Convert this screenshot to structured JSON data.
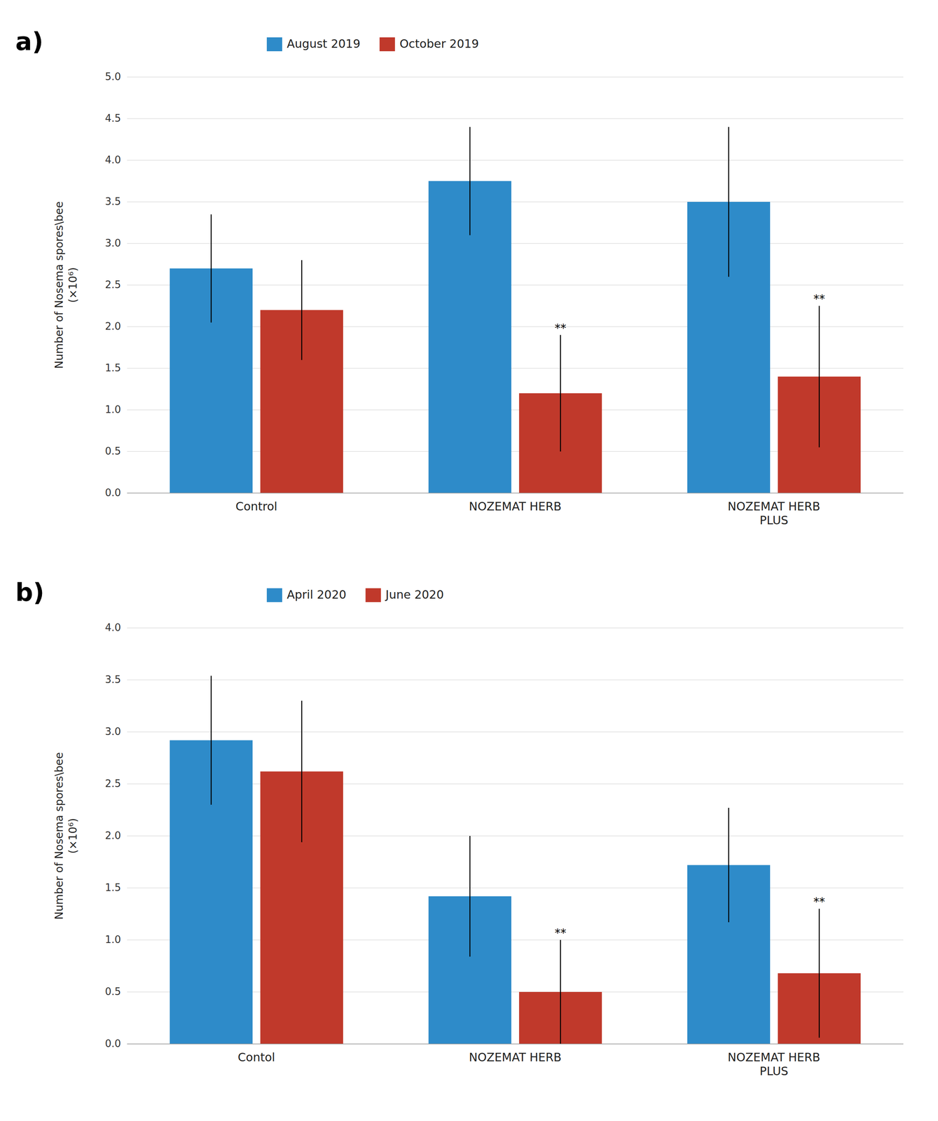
{
  "chart_data": [
    {
      "type": "bar",
      "title": "a)",
      "y_label": "Number of Nosema spores\\bee\n(×10⁶)",
      "categories": [
        "Control",
        "NOZEMAT HERB",
        "NOZEMAT HERB\nPLUS"
      ],
      "series": [
        {
          "name": "August 2019",
          "color": "#2e8bc9",
          "values": [
            2.7,
            3.75,
            3.5
          ],
          "errors": [
            0.65,
            0.65,
            0.9
          ]
        },
        {
          "name": "October 2019",
          "color": "#c0392b",
          "values": [
            2.2,
            1.2,
            1.4
          ],
          "errors": [
            0.6,
            0.7,
            0.85
          ],
          "annotations": [
            null,
            "**",
            "**"
          ]
        }
      ],
      "ylim": [
        0,
        5
      ],
      "yticks": [
        {
          "value": 0,
          "label": "0.0"
        },
        0.5,
        {
          "value": 1,
          "label": "1.0"
        },
        1.5,
        {
          "value": 2,
          "label": "2.0"
        },
        2.5,
        {
          "value": 3,
          "label": "3.0"
        },
        3.5,
        {
          "value": 4,
          "label": "4.0"
        },
        4.5,
        {
          "value": 5,
          "label": "5.0"
        }
      ],
      "grid": true,
      "legend": "top"
    },
    {
      "type": "bar",
      "title": "b)",
      "y_label": "Number of Nosema spores\\bee\n(×10⁶)",
      "categories": [
        "Contol",
        "NOZEMAT HERB",
        "NOZEMAT HERB\nPLUS"
      ],
      "series": [
        {
          "name": "April 2020",
          "color": "#2e8bc9",
          "values": [
            2.92,
            1.42,
            1.72
          ],
          "errors": [
            0.62,
            0.58,
            0.55
          ]
        },
        {
          "name": "June 2020",
          "color": "#c0392b",
          "values": [
            2.62,
            0.5,
            0.68
          ],
          "errors": [
            0.68,
            0.5,
            0.62
          ],
          "annotations": [
            null,
            "**",
            "**"
          ]
        }
      ],
      "ylim": [
        0,
        4
      ],
      "yticks": [
        {
          "value": 0,
          "label": "0.0"
        },
        0.5,
        {
          "value": 1,
          "label": "1.0"
        },
        1.5,
        {
          "value": 2,
          "label": "2.0"
        },
        2.5,
        {
          "value": 3,
          "label": "3.0"
        },
        3.5,
        {
          "value": 4,
          "label": "4.0"
        }
      ],
      "grid": true,
      "legend": "top"
    }
  ]
}
